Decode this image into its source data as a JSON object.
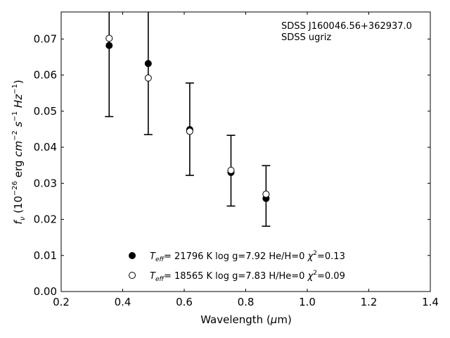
{
  "chart_data": {
    "type": "scatter",
    "xlabel": "Wavelength (μm)",
    "ylabel": "f_ν (10^−26 erg cm^−2 s^−1 Hz^−1)",
    "xlim": [
      0.2,
      1.4
    ],
    "ylim": [
      0.0,
      0.0775
    ],
    "xticks": [
      0.2,
      0.4,
      0.6,
      0.8,
      1.0,
      1.2,
      1.4
    ],
    "xtick_labels": [
      "0.2",
      "0.4",
      "0.6",
      "0.8",
      "1.0",
      "1.2",
      "1.4"
    ],
    "yticks": [
      0.0,
      0.01,
      0.02,
      0.03,
      0.04,
      0.05,
      0.06,
      0.07
    ],
    "ytick_labels": [
      "0.00",
      "0.01",
      "0.02",
      "0.03",
      "0.04",
      "0.05",
      "0.06",
      "0.07"
    ],
    "grid": false,
    "annotation": [
      "SDSS J160046.56+362937.0",
      "SDSS ugriz"
    ],
    "legend_placement": "bottom-center",
    "x": [
      0.356,
      0.483,
      0.618,
      0.752,
      0.866
    ],
    "observed": {
      "marker": "errorbar",
      "y": [
        0.0685,
        0.0635,
        0.045,
        0.0335,
        0.0265
      ],
      "yerr": [
        0.02,
        0.02,
        0.0128,
        0.0098,
        0.0084
      ]
    },
    "series": [
      {
        "name": "T_eff= 21796 K  log g=7.92  He/H=0  χ²=0.13",
        "marker": "filled-circle",
        "legend": {
          "teff_sym": "T",
          "teff_sub": "eff",
          "teff_value": "= 21796 K  log g=7.92  He/H=0  ",
          "chi": "χ",
          "chi_sup": "2",
          "chi_value": "=0.13"
        },
        "values": [
          0.0682,
          0.0632,
          0.0449,
          0.033,
          0.0258
        ]
      },
      {
        "name": "T_eff= 18565 K  log g=7.83  H/He=0  χ²=0.09",
        "marker": "open-circle",
        "legend": {
          "teff_sym": "T",
          "teff_sub": "eff",
          "teff_value": "= 18565 K  log g=7.83  H/He=0  ",
          "chi": "χ",
          "chi_sup": "2",
          "chi_value": "=0.09"
        },
        "values": [
          0.0702,
          0.0592,
          0.0444,
          0.0336,
          0.027
        ]
      }
    ]
  }
}
